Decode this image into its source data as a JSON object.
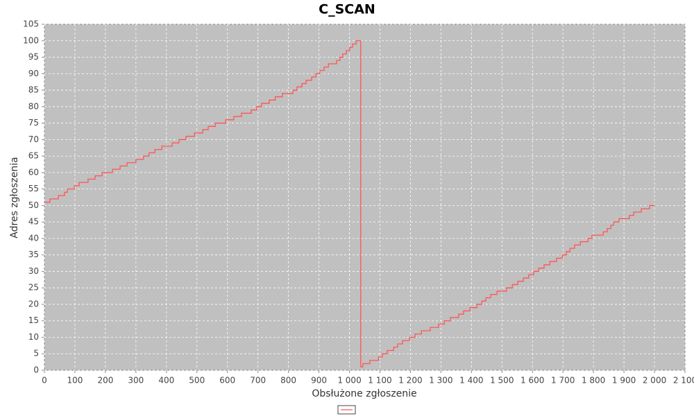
{
  "chart_data": {
    "type": "step",
    "title": "C_SCAN",
    "x_label": "Obsłużone zgłoszenie",
    "y_label": "Adres zgłoszenia",
    "color": "#ff5555",
    "plot_background": "#c0c0c0",
    "grid": true,
    "legend_position": "bottom",
    "xlim": [
      0,
      2100
    ],
    "ylim": [
      0,
      105
    ],
    "xticks": [
      0,
      100,
      200,
      300,
      400,
      500,
      600,
      700,
      800,
      900,
      {
        "value": 1000,
        "label": "1 000"
      },
      {
        "value": 1100,
        "label": "1 100"
      },
      {
        "value": 1200,
        "label": "1 200"
      },
      {
        "value": 1300,
        "label": "1 300"
      },
      {
        "value": 1400,
        "label": "1 400"
      },
      {
        "value": 1500,
        "label": "1 500"
      },
      {
        "value": 1600,
        "label": "1 600"
      },
      {
        "value": 1700,
        "label": "1 700"
      },
      {
        "value": 1800,
        "label": "1 800"
      },
      {
        "value": 1900,
        "label": "1 900"
      },
      {
        "value": 2000,
        "label": "2 000"
      },
      {
        "value": 2100,
        "label": "2 100"
      }
    ],
    "yticks": [
      0,
      5,
      10,
      15,
      20,
      25,
      30,
      35,
      40,
      45,
      50,
      55,
      60,
      65,
      70,
      75,
      80,
      85,
      90,
      95,
      100,
      105
    ],
    "series": [
      {
        "color": "#ff5555",
        "x": [
          0,
          18,
          46,
          66,
          75,
          98,
          114,
          143,
          166,
          189,
          223,
          248,
          271,
          300,
          325,
          343,
          362,
          385,
          419,
          441,
          464,
          492,
          519,
          537,
          560,
          594,
          621,
          646,
          678,
          696,
          712,
          737,
          757,
          780,
          815,
          828,
          844,
          858,
          876,
          890,
          903,
          917,
          931,
          958,
          969,
          978,
          990,
          1001,
          1010,
          1022,
          1037,
          1044,
          1067,
          1095,
          1108,
          1124,
          1145,
          1158,
          1174,
          1197,
          1215,
          1236,
          1265,
          1292,
          1311,
          1331,
          1358,
          1374,
          1395,
          1418,
          1434,
          1447,
          1463,
          1484,
          1515,
          1534,
          1552,
          1570,
          1588,
          1604,
          1620,
          1638,
          1657,
          1679,
          1698,
          1711,
          1723,
          1738,
          1757,
          1782,
          1795,
          1832,
          1845,
          1857,
          1866,
          1884,
          1918,
          1932,
          1957,
          1984,
          2000
        ],
        "values": [
          51,
          52,
          53,
          54,
          55,
          56,
          57,
          58,
          59,
          60,
          61,
          62,
          63,
          64,
          65,
          66,
          67,
          68,
          69,
          70,
          71,
          72,
          73,
          74,
          75,
          76,
          77,
          78,
          79,
          80,
          81,
          82,
          83,
          84,
          85,
          86,
          87,
          88,
          89,
          90,
          91,
          92,
          93,
          94,
          95,
          96,
          97,
          98,
          99,
          100,
          1,
          2,
          3,
          4,
          5,
          6,
          7,
          8,
          9,
          10,
          11,
          12,
          13,
          14,
          15,
          16,
          17,
          18,
          19,
          20,
          21,
          22,
          23,
          24,
          25,
          26,
          27,
          28,
          29,
          30,
          31,
          32,
          33,
          34,
          35,
          36,
          37,
          38,
          39,
          40,
          41,
          42,
          43,
          44,
          45,
          46,
          47,
          48,
          49,
          50,
          50
        ]
      }
    ]
  }
}
